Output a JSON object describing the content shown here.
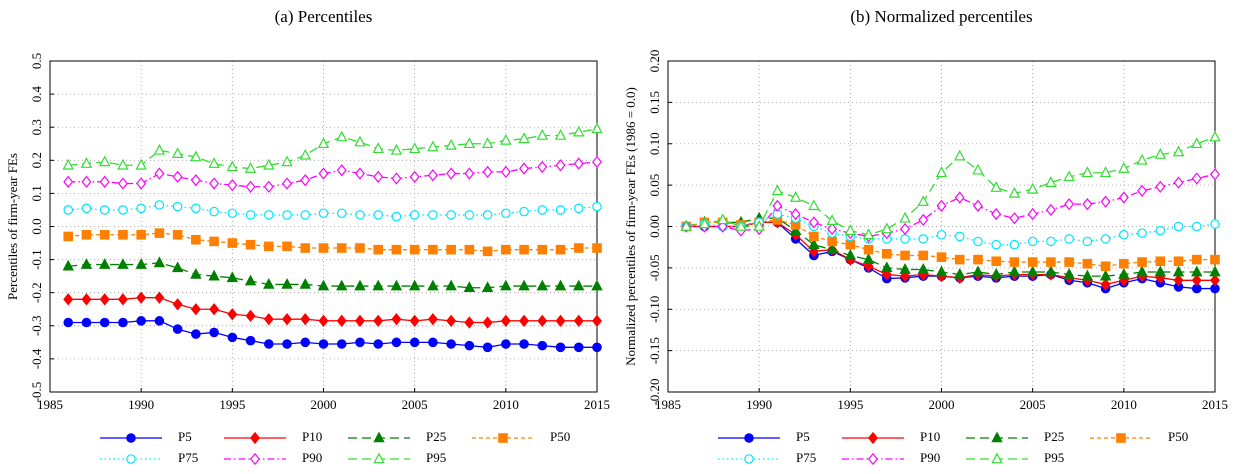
{
  "chart_data": [
    {
      "type": "line",
      "title": "(a) Percentiles",
      "y_label": "Percentiles of firm-year FEs",
      "x": [
        1986,
        1987,
        1988,
        1989,
        1990,
        1991,
        1992,
        1993,
        1994,
        1995,
        1996,
        1997,
        1998,
        1999,
        2000,
        2001,
        2002,
        2003,
        2004,
        2005,
        2006,
        2007,
        2008,
        2009,
        2010,
        2011,
        2012,
        2013,
        2014,
        2015
      ],
      "xlim": [
        1985,
        2015
      ],
      "xticks": [
        1985,
        1990,
        1995,
        2000,
        2005,
        2010,
        2015
      ],
      "ylim": [
        -0.5,
        0.5
      ],
      "yticks": [
        -0.5,
        -0.4,
        -0.3,
        -0.2,
        -0.1,
        {
          "value": 0,
          "label": "0.0"
        },
        0.1,
        0.2,
        0.3,
        0.4,
        0.5
      ],
      "grid": true,
      "legend": "bottom",
      "series": [
        {
          "name": "P5",
          "color": "#0000ff",
          "marker": "circle",
          "filled": true,
          "linestyle": "solid",
          "values": [
            -0.29,
            -0.29,
            -0.29,
            -0.29,
            -0.285,
            -0.285,
            -0.31,
            -0.325,
            -0.32,
            -0.335,
            -0.345,
            -0.355,
            -0.355,
            -0.35,
            -0.355,
            -0.355,
            -0.35,
            -0.355,
            -0.35,
            -0.35,
            -0.35,
            -0.355,
            -0.36,
            -0.365,
            -0.355,
            -0.355,
            -0.36,
            -0.365,
            -0.365,
            -0.365
          ]
        },
        {
          "name": "P10",
          "color": "#ff0000",
          "marker": "diamond",
          "filled": true,
          "linestyle": "solid",
          "values": [
            -0.22,
            -0.22,
            -0.22,
            -0.22,
            -0.215,
            -0.215,
            -0.235,
            -0.25,
            -0.25,
            -0.265,
            -0.27,
            -0.28,
            -0.28,
            -0.28,
            -0.285,
            -0.285,
            -0.285,
            -0.285,
            -0.28,
            -0.285,
            -0.28,
            -0.285,
            -0.29,
            -0.29,
            -0.285,
            -0.285,
            -0.285,
            -0.285,
            -0.285,
            -0.285
          ]
        },
        {
          "name": "P25",
          "color": "#008000",
          "marker": "triangle",
          "filled": true,
          "linestyle": "dashed",
          "values": [
            -0.12,
            -0.115,
            -0.115,
            -0.115,
            -0.115,
            -0.11,
            -0.125,
            -0.145,
            -0.15,
            -0.155,
            -0.165,
            -0.175,
            -0.175,
            -0.175,
            -0.18,
            -0.18,
            -0.18,
            -0.18,
            -0.18,
            -0.18,
            -0.18,
            -0.18,
            -0.185,
            -0.185,
            -0.18,
            -0.18,
            -0.18,
            -0.18,
            -0.18,
            -0.18
          ]
        },
        {
          "name": "P50",
          "color": "#ff8000",
          "marker": "square",
          "filled": true,
          "linestyle": "shortdash",
          "values": [
            -0.03,
            -0.025,
            -0.025,
            -0.025,
            -0.025,
            -0.02,
            -0.025,
            -0.04,
            -0.045,
            -0.05,
            -0.055,
            -0.06,
            -0.06,
            -0.065,
            -0.065,
            -0.065,
            -0.065,
            -0.07,
            -0.07,
            -0.07,
            -0.07,
            -0.07,
            -0.07,
            -0.075,
            -0.07,
            -0.07,
            -0.07,
            -0.07,
            -0.065,
            -0.065
          ]
        },
        {
          "name": "P75",
          "color": "#00e5ff",
          "marker": "circle",
          "filled": false,
          "linestyle": "dotted",
          "values": [
            0.05,
            0.055,
            0.05,
            0.05,
            0.055,
            0.065,
            0.06,
            0.055,
            0.045,
            0.04,
            0.035,
            0.035,
            0.035,
            0.035,
            0.04,
            0.04,
            0.035,
            0.035,
            0.03,
            0.035,
            0.035,
            0.035,
            0.035,
            0.035,
            0.04,
            0.045,
            0.05,
            0.05,
            0.055,
            0.06
          ]
        },
        {
          "name": "P90",
          "color": "#ff00ff",
          "marker": "diamond",
          "filled": false,
          "linestyle": "dashdot",
          "values": [
            0.135,
            0.135,
            0.135,
            0.13,
            0.13,
            0.16,
            0.15,
            0.14,
            0.13,
            0.125,
            0.12,
            0.12,
            0.13,
            0.14,
            0.16,
            0.17,
            0.16,
            0.15,
            0.145,
            0.15,
            0.155,
            0.16,
            0.16,
            0.165,
            0.165,
            0.175,
            0.18,
            0.185,
            0.19,
            0.195
          ]
        },
        {
          "name": "P95",
          "color": "#33dd33",
          "marker": "triangle",
          "filled": false,
          "linestyle": "dashed",
          "values": [
            0.185,
            0.19,
            0.195,
            0.185,
            0.185,
            0.23,
            0.22,
            0.21,
            0.19,
            0.18,
            0.175,
            0.185,
            0.195,
            0.215,
            0.25,
            0.27,
            0.255,
            0.235,
            0.23,
            0.235,
            0.24,
            0.245,
            0.25,
            0.25,
            0.26,
            0.265,
            0.275,
            0.275,
            0.285,
            0.295
          ]
        }
      ]
    },
    {
      "type": "line",
      "title": "(b) Normalized percentiles",
      "y_label": "Normalized percentiles of firm-year FEs (1986 = 0.0)",
      "x": [
        1986,
        1987,
        1988,
        1989,
        1990,
        1991,
        1992,
        1993,
        1994,
        1995,
        1996,
        1997,
        1998,
        1999,
        2000,
        2001,
        2002,
        2003,
        2004,
        2005,
        2006,
        2007,
        2008,
        2009,
        2010,
        2011,
        2012,
        2013,
        2014,
        2015
      ],
      "xlim": [
        1985,
        2015
      ],
      "xticks": [
        1985,
        1990,
        1995,
        2000,
        2005,
        2010,
        2015
      ],
      "ylim": [
        -0.2,
        0.2
      ],
      "yticks": [
        {
          "value": -0.2,
          "label": "-0.20"
        },
        -0.15,
        {
          "value": -0.1,
          "label": "-0.10"
        },
        -0.05,
        {
          "value": 0,
          "label": "0.00"
        },
        0.05,
        {
          "value": 0.1,
          "label": "0.10"
        },
        0.15,
        {
          "value": 0.2,
          "label": "0.20"
        }
      ],
      "grid": true,
      "legend": "bottom",
      "series": [
        {
          "name": "P5",
          "color": "#0000ff",
          "marker": "circle",
          "filled": true,
          "linestyle": "solid",
          "values": [
            0,
            0,
            0,
            0,
            0.005,
            0.005,
            -0.015,
            -0.035,
            -0.03,
            -0.04,
            -0.05,
            -0.063,
            -0.062,
            -0.06,
            -0.06,
            -0.062,
            -0.06,
            -0.062,
            -0.06,
            -0.06,
            -0.058,
            -0.065,
            -0.068,
            -0.075,
            -0.068,
            -0.063,
            -0.068,
            -0.073,
            -0.075,
            -0.075
          ]
        },
        {
          "name": "P10",
          "color": "#ff0000",
          "marker": "diamond",
          "filled": true,
          "linestyle": "solid",
          "values": [
            0,
            0,
            0,
            0,
            0.005,
            0.005,
            -0.01,
            -0.03,
            -0.028,
            -0.04,
            -0.048,
            -0.058,
            -0.06,
            -0.058,
            -0.06,
            -0.062,
            -0.058,
            -0.06,
            -0.058,
            -0.058,
            -0.058,
            -0.062,
            -0.065,
            -0.07,
            -0.065,
            -0.06,
            -0.062,
            -0.065,
            -0.065,
            -0.065
          ]
        },
        {
          "name": "P25",
          "color": "#008000",
          "marker": "triangle",
          "filled": true,
          "linestyle": "dashed",
          "values": [
            0,
            0.005,
            0.005,
            0.005,
            0.01,
            0.01,
            -0.005,
            -0.022,
            -0.028,
            -0.035,
            -0.04,
            -0.05,
            -0.052,
            -0.052,
            -0.055,
            -0.058,
            -0.055,
            -0.058,
            -0.055,
            -0.055,
            -0.055,
            -0.058,
            -0.06,
            -0.06,
            -0.058,
            -0.055,
            -0.055,
            -0.055,
            -0.055,
            -0.055
          ]
        },
        {
          "name": "P50",
          "color": "#ff8000",
          "marker": "square",
          "filled": true,
          "linestyle": "shortdash",
          "values": [
            0,
            0.005,
            0.005,
            0.002,
            0.005,
            0.008,
            0.002,
            -0.012,
            -0.018,
            -0.022,
            -0.028,
            -0.033,
            -0.035,
            -0.035,
            -0.037,
            -0.04,
            -0.04,
            -0.042,
            -0.043,
            -0.043,
            -0.043,
            -0.043,
            -0.045,
            -0.048,
            -0.045,
            -0.043,
            -0.042,
            -0.042,
            -0.04,
            -0.04
          ]
        },
        {
          "name": "P75",
          "color": "#00e5ff",
          "marker": "circle",
          "filled": false,
          "linestyle": "dotted",
          "values": [
            0,
            0.003,
            0,
            0,
            0.005,
            0.015,
            0.01,
            0,
            -0.008,
            -0.012,
            -0.015,
            -0.015,
            -0.015,
            -0.015,
            -0.01,
            -0.012,
            -0.018,
            -0.022,
            -0.022,
            -0.018,
            -0.018,
            -0.015,
            -0.018,
            -0.015,
            -0.01,
            -0.008,
            -0.005,
            0,
            0,
            0.003
          ]
        },
        {
          "name": "P90",
          "color": "#ff00ff",
          "marker": "diamond",
          "filled": false,
          "linestyle": "dashdot",
          "values": [
            0,
            0,
            0,
            -0.005,
            -0.003,
            0.025,
            0.015,
            0.005,
            -0.003,
            -0.008,
            -0.012,
            -0.008,
            -0.003,
            0.008,
            0.025,
            0.035,
            0.025,
            0.015,
            0.01,
            0.015,
            0.02,
            0.027,
            0.027,
            0.03,
            0.035,
            0.043,
            0.048,
            0.053,
            0.058,
            0.063
          ]
        },
        {
          "name": "P95",
          "color": "#33dd33",
          "marker": "triangle",
          "filled": false,
          "linestyle": "dashed",
          "values": [
            0,
            0.003,
            0.008,
            0,
            0,
            0.043,
            0.035,
            0.025,
            0.007,
            -0.005,
            -0.01,
            -0.003,
            0.01,
            0.03,
            0.065,
            0.085,
            0.068,
            0.047,
            0.04,
            0.045,
            0.053,
            0.06,
            0.065,
            0.065,
            0.07,
            0.08,
            0.087,
            0.09,
            0.1,
            0.108
          ]
        }
      ]
    }
  ]
}
